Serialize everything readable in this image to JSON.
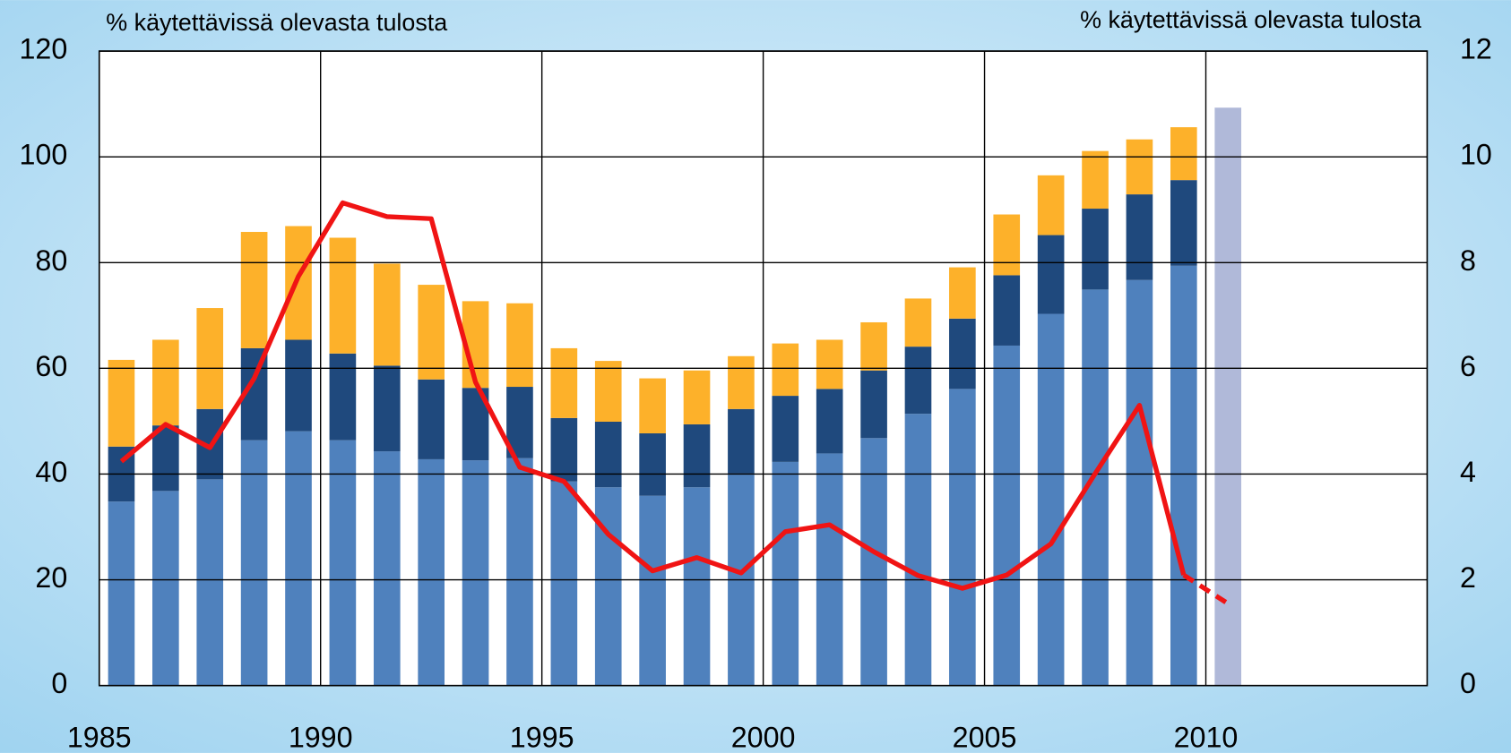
{
  "chart_data": {
    "type": "bar",
    "y_axis_label": "% käytettävissä olevasta tulosta",
    "y2_axis_label": "% käytettävissä olevasta tulosta",
    "x": [
      1985,
      1986,
      1987,
      1988,
      1989,
      1990,
      1991,
      1992,
      1993,
      1994,
      1995,
      1996,
      1997,
      1998,
      1999,
      2000,
      2001,
      2002,
      2003,
      2004,
      2005,
      2006,
      2007,
      2008,
      2009,
      2010
    ],
    "stacked": true,
    "series": [
      {
        "color": "#4f81bd",
        "type": "bar",
        "values": [
          34.8,
          36.8,
          39,
          46.4,
          48.1,
          46.4,
          44.3,
          42.8,
          42.6,
          43,
          38.6,
          37.5,
          35.9,
          37.5,
          40.1,
          42.3,
          43.9,
          46.8,
          51.4,
          56.1,
          64.3,
          70.3,
          74.9,
          76.7,
          79.4,
          null
        ]
      },
      {
        "color": "#1f497d",
        "type": "bar",
        "values": [
          10.4,
          12.4,
          13.3,
          17.4,
          17.3,
          16.4,
          16.2,
          15.1,
          13.7,
          13.5,
          12,
          12.4,
          11.8,
          11.9,
          12.2,
          12.5,
          12.2,
          12.8,
          12.7,
          13.3,
          13.3,
          14.9,
          15.3,
          16.2,
          16.2,
          null
        ]
      },
      {
        "color": "#fdb12a",
        "type": "bar",
        "values": [
          16.4,
          16.2,
          19.1,
          22,
          21.5,
          21.9,
          19.3,
          17.9,
          16.4,
          15.8,
          13.2,
          11.5,
          10.4,
          10.2,
          10,
          9.9,
          9.3,
          9.1,
          9.1,
          9.7,
          11.5,
          11.3,
          10.9,
          10.4,
          10,
          null
        ]
      },
      {
        "color": "#b0b9d9",
        "type": "bar",
        "values": [
          null,
          null,
          null,
          null,
          null,
          null,
          null,
          null,
          null,
          null,
          null,
          null,
          null,
          null,
          null,
          null,
          null,
          null,
          null,
          null,
          null,
          null,
          null,
          null,
          null,
          109.3
        ]
      },
      {
        "color": "#f01414",
        "type": "line",
        "axis": "y2",
        "dash": false,
        "values": [
          4.24,
          4.94,
          4.5,
          5.81,
          7.74,
          9.13,
          8.87,
          8.83,
          5.74,
          4.13,
          3.86,
          2.86,
          2.17,
          2.42,
          2.13,
          2.91,
          3.04,
          2.53,
          2.08,
          1.84,
          2.09,
          2.68,
          4.01,
          5.3,
          2.09,
          null
        ]
      },
      {
        "color": "#f01414",
        "type": "line",
        "axis": "y2",
        "dash": true,
        "values": [
          null,
          null,
          null,
          null,
          null,
          null,
          null,
          null,
          null,
          null,
          null,
          null,
          null,
          null,
          null,
          null,
          null,
          null,
          null,
          null,
          null,
          null,
          null,
          null,
          2.09,
          1.55
        ]
      }
    ],
    "xlim": [
      1985,
      2015
    ],
    "xticks": [
      1985,
      1990,
      1995,
      2000,
      2005,
      2010
    ],
    "ylim": [
      0,
      120
    ],
    "yticks": [
      0,
      20,
      40,
      60,
      80,
      100,
      120
    ],
    "y2lim": [
      0,
      12
    ],
    "y2ticks": [
      0,
      2,
      4,
      6,
      8,
      10,
      12
    ],
    "grid": true
  }
}
